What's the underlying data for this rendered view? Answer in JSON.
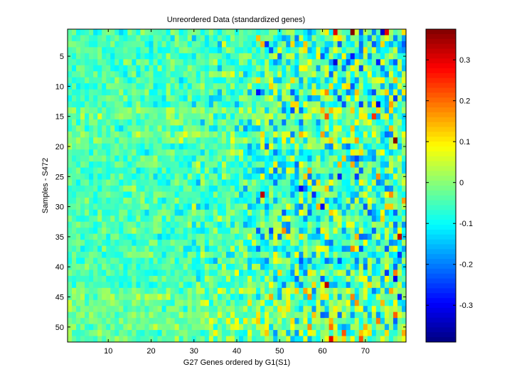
{
  "chart_data": {
    "type": "heatmap",
    "title": "Unreordered Data (standardized genes)",
    "xlabel": "G27 Genes ordered by G1(S1)",
    "ylabel": "Samples - S472",
    "x_range": [
      1,
      79
    ],
    "y_range": [
      1,
      52
    ],
    "y_reversed": true,
    "x_ticks": [
      10,
      20,
      30,
      40,
      50,
      60,
      70
    ],
    "y_ticks": [
      5,
      10,
      15,
      20,
      25,
      30,
      35,
      40,
      45,
      50
    ],
    "colormap": "jet",
    "clim": [
      -0.39,
      0.375
    ],
    "colorbar_ticks": [
      -0.3,
      -0.2,
      -0.1,
      0,
      0.1,
      0.2,
      0.3
    ],
    "colorbar_tick_labels": [
      "-0.3",
      "-0.2",
      "-0.1",
      "0",
      "0.1",
      "0.2",
      "0.3"
    ],
    "value_pattern": {
      "base": -0.05,
      "noise_scale_left_genes": 0.05,
      "noise_scale_right_genes": 0.16,
      "rows_warmer": [
        14,
        15,
        18,
        19,
        44,
        45,
        46,
        47,
        48,
        49,
        50,
        51,
        52
      ],
      "notable_cells": [
        {
          "gene": 67,
          "sample": 1,
          "value": 0.37
        },
        {
          "gene": 63,
          "sample": 1,
          "value": 0.3
        },
        {
          "gene": 74,
          "sample": 1,
          "value": -0.33
        },
        {
          "gene": 75,
          "sample": 1,
          "value": 0.3
        },
        {
          "gene": 77,
          "sample": 19,
          "value": 0.37
        },
        {
          "gene": 46,
          "sample": 28,
          "value": 0.33
        },
        {
          "gene": 61,
          "sample": 43,
          "value": 0.33
        },
        {
          "gene": 62,
          "sample": 52,
          "value": 0.3
        },
        {
          "gene": 55,
          "sample": 27,
          "value": -0.3
        },
        {
          "gene": 60,
          "sample": 30,
          "value": -0.3
        },
        {
          "gene": 63,
          "sample": 6,
          "value": -0.32
        },
        {
          "gene": 73,
          "sample": 13,
          "value": -0.32
        },
        {
          "gene": 78,
          "sample": 35,
          "value": 0.33
        }
      ]
    }
  }
}
